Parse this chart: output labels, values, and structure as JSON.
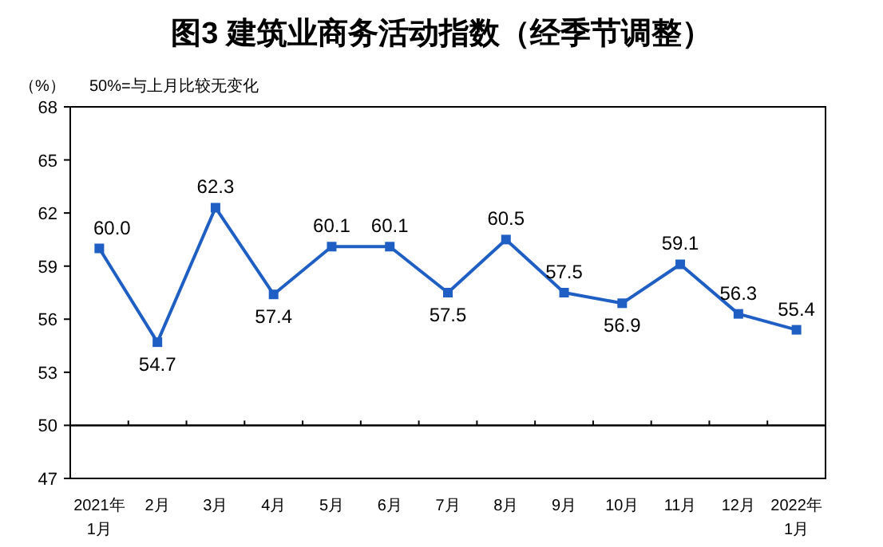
{
  "chart_data": {
    "type": "line",
    "title": "图3  建筑业商务活动指数（经季节调整）",
    "ylabel": "（%）",
    "annotations": [
      "50%=与上月比较无变化"
    ],
    "categories": [
      "2021年\n1月",
      "2月",
      "3月",
      "4月",
      "5月",
      "6月",
      "7月",
      "8月",
      "9月",
      "10月",
      "11月",
      "12月",
      "2022年\n1月"
    ],
    "series": [
      {
        "color": "#1f5fc4",
        "values": [
          60.0,
          54.7,
          62.3,
          57.4,
          60.1,
          60.1,
          57.5,
          60.5,
          57.5,
          56.9,
          59.1,
          56.3,
          55.4
        ],
        "value_labels": [
          "60.0",
          "54.7",
          "62.3",
          "57.4",
          "60.1",
          "60.1",
          "57.5",
          "60.5",
          "57.5",
          "56.9",
          "59.1",
          "56.3",
          "55.4"
        ]
      }
    ],
    "ylim": [
      47,
      68
    ],
    "yticks": [
      47,
      50,
      53,
      56,
      59,
      62,
      65,
      68
    ],
    "ref_lines": [
      {
        "axis": "y",
        "value": 50,
        "color": "#000000"
      }
    ],
    "marker": "square",
    "line_style": "solid",
    "grid": false
  }
}
